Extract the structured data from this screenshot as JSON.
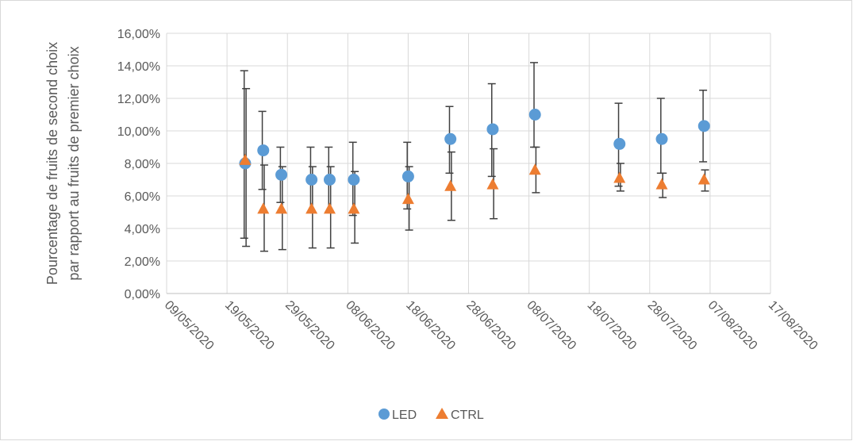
{
  "chart_data": {
    "type": "scatter",
    "title": "",
    "ylabel_lines": [
      "Pourcentage de fruits de second choix",
      "par rapport au fruits de premier choix"
    ],
    "xlabel": "",
    "x_axis_type": "date",
    "xlim": [
      "2020-05-09",
      "2020-08-17"
    ],
    "x_tick_labels": [
      "09/05/2020",
      "19/05/2020",
      "29/05/2020",
      "08/06/2020",
      "18/06/2020",
      "28/06/2020",
      "08/07/2020",
      "18/07/2020",
      "28/07/2020",
      "07/08/2020",
      "17/08/2020"
    ],
    "ylim": [
      0,
      0.16
    ],
    "y_tick_labels": [
      "0,00%",
      "2,00%",
      "4,00%",
      "6,00%",
      "8,00%",
      "10,00%",
      "12,00%",
      "14,00%",
      "16,00%"
    ],
    "grid": "horizontal",
    "legend_position": "bottom",
    "series": [
      {
        "name": "LED",
        "color": "#5B9BD5",
        "marker": "circle",
        "points": [
          {
            "x": "2020-05-22",
            "y": 0.08,
            "err_low": 0.034,
            "err_high": 0.137
          },
          {
            "x": "2020-05-25",
            "y": 0.088,
            "err_low": 0.064,
            "err_high": 0.112
          },
          {
            "x": "2020-05-28",
            "y": 0.073,
            "err_low": 0.056,
            "err_high": 0.09
          },
          {
            "x": "2020-06-02",
            "y": 0.07,
            "err_low": 0.05,
            "err_high": 0.09
          },
          {
            "x": "2020-06-05",
            "y": 0.07,
            "err_low": 0.05,
            "err_high": 0.09
          },
          {
            "x": "2020-06-09",
            "y": 0.07,
            "err_low": 0.048,
            "err_high": 0.093
          },
          {
            "x": "2020-06-18",
            "y": 0.072,
            "err_low": 0.052,
            "err_high": 0.093
          },
          {
            "x": "2020-06-25",
            "y": 0.095,
            "err_low": 0.074,
            "err_high": 0.115
          },
          {
            "x": "2020-07-02",
            "y": 0.101,
            "err_low": 0.072,
            "err_high": 0.129
          },
          {
            "x": "2020-07-09",
            "y": 0.11,
            "err_low": 0.09,
            "err_high": 0.142
          },
          {
            "x": "2020-07-23",
            "y": 0.092,
            "err_low": 0.066,
            "err_high": 0.117
          },
          {
            "x": "2020-07-30",
            "y": 0.095,
            "err_low": 0.074,
            "err_high": 0.12
          },
          {
            "x": "2020-08-06",
            "y": 0.103,
            "err_low": 0.081,
            "err_high": 0.125
          }
        ]
      },
      {
        "name": "CTRL",
        "color": "#ED7D31",
        "marker": "triangle",
        "points": [
          {
            "x": "2020-05-22",
            "y": 0.082,
            "err_low": 0.029,
            "err_high": 0.126
          },
          {
            "x": "2020-05-25",
            "y": 0.052,
            "err_low": 0.026,
            "err_high": 0.079
          },
          {
            "x": "2020-05-28",
            "y": 0.052,
            "err_low": 0.027,
            "err_high": 0.078
          },
          {
            "x": "2020-06-02",
            "y": 0.052,
            "err_low": 0.028,
            "err_high": 0.078
          },
          {
            "x": "2020-06-05",
            "y": 0.052,
            "err_low": 0.028,
            "err_high": 0.078
          },
          {
            "x": "2020-06-09",
            "y": 0.052,
            "err_low": 0.031,
            "err_high": 0.075
          },
          {
            "x": "2020-06-18",
            "y": 0.058,
            "err_low": 0.039,
            "err_high": 0.078
          },
          {
            "x": "2020-06-25",
            "y": 0.066,
            "err_low": 0.045,
            "err_high": 0.087
          },
          {
            "x": "2020-07-02",
            "y": 0.067,
            "err_low": 0.046,
            "err_high": 0.089
          },
          {
            "x": "2020-07-09",
            "y": 0.076,
            "err_low": 0.062,
            "err_high": 0.09
          },
          {
            "x": "2020-07-23",
            "y": 0.071,
            "err_low": 0.063,
            "err_high": 0.08
          },
          {
            "x": "2020-07-30",
            "y": 0.067,
            "err_low": 0.059,
            "err_high": 0.074
          },
          {
            "x": "2020-08-06",
            "y": 0.07,
            "err_low": 0.063,
            "err_high": 0.076
          }
        ]
      }
    ]
  }
}
